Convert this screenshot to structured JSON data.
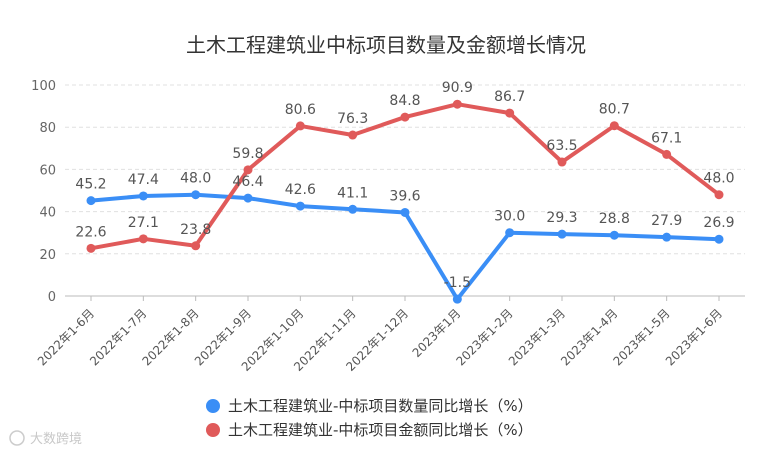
{
  "chart_data": {
    "type": "line",
    "title": "土木工程建筑业中标项目数量及金额增长情况",
    "categories": [
      "2022年1-6月",
      "2022年1-7月",
      "2022年1-8月",
      "2022年1-9月",
      "2022年1-10月",
      "2022年1-11月",
      "2022年1-12月",
      "2023年1月",
      "2023年1-2月",
      "2023年1-3月",
      "2023年1-4月",
      "2023年1-5月",
      "2023年1-6月"
    ],
    "series": [
      {
        "name": "土木工程建筑业-中标项目数量同比增长（%）",
        "color": "#3a8ef6",
        "values": [
          45.2,
          47.4,
          48.0,
          46.4,
          42.6,
          41.1,
          39.6,
          -1.5,
          30.0,
          29.3,
          28.8,
          27.9,
          26.9
        ],
        "labels": [
          "45.2",
          "47.4",
          "48.0",
          "46.4",
          "42.6",
          "41.1",
          "39.6",
          "-1.5",
          "30.0",
          "29.3",
          "28.8",
          "27.9",
          "26.9"
        ]
      },
      {
        "name": "土木工程建筑业-中标项目金额同比增长（%）",
        "color": "#e05a5a",
        "values": [
          22.6,
          27.1,
          23.8,
          59.8,
          80.6,
          76.3,
          84.8,
          90.9,
          86.7,
          63.5,
          80.7,
          67.1,
          48.0
        ],
        "labels": [
          "22.6",
          "27.1",
          "23.8",
          "59.8",
          "80.6",
          "76.3",
          "84.8",
          "90.9",
          "86.7",
          "63.5",
          "80.7",
          "67.1",
          "48.0"
        ]
      }
    ],
    "yticks": [
      "0",
      "20",
      "40",
      "60",
      "80",
      "100"
    ],
    "ylim": [
      0,
      100
    ],
    "grid": true,
    "legend": "bottom"
  },
  "watermark": "大数跨境"
}
